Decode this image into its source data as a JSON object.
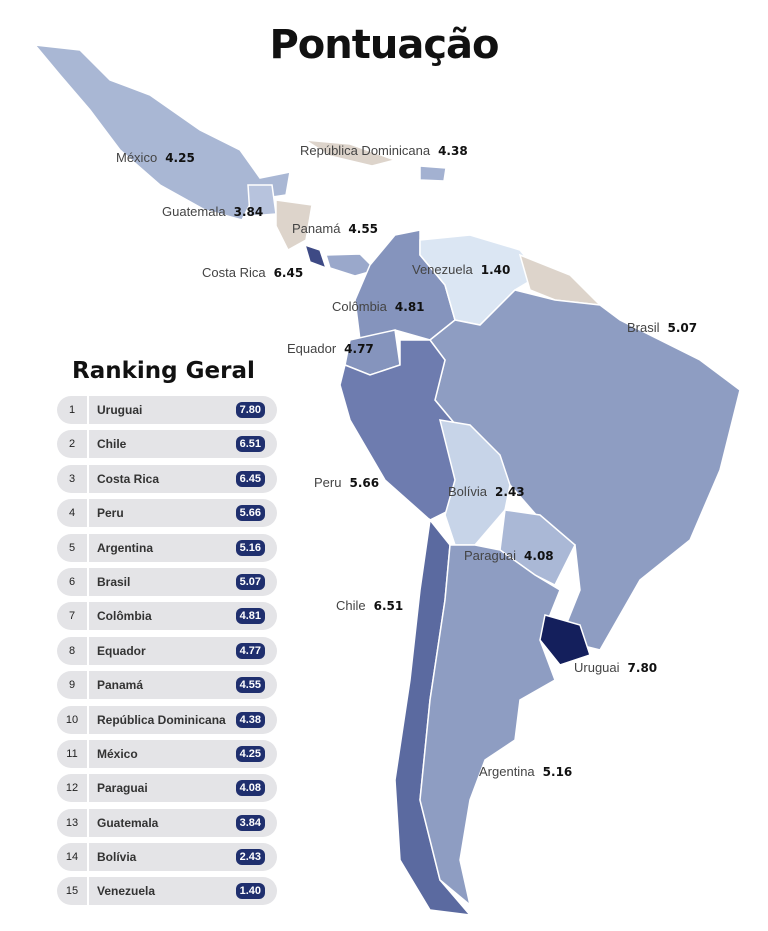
{
  "title": "Pontuação",
  "colors": {
    "unrated": "#ddd4cb",
    "darkest": "#141f5c",
    "lightest": "#dbe6f3",
    "badge": "#1f2f6e"
  },
  "map_labels": [
    {
      "name": "México",
      "score": "4.25"
    },
    {
      "name": "República Dominicana",
      "score": "4.38"
    },
    {
      "name": "Guatemala",
      "score": "3.84"
    },
    {
      "name": "Panamá",
      "score": "4.55"
    },
    {
      "name": "Costa Rica",
      "score": "6.45"
    },
    {
      "name": "Venezuela",
      "score": "1.40"
    },
    {
      "name": "Colômbia",
      "score": "4.81"
    },
    {
      "name": "Brasil",
      "score": "5.07"
    },
    {
      "name": "Equador",
      "score": "4.77"
    },
    {
      "name": "Peru",
      "score": "5.66"
    },
    {
      "name": "Bolívia",
      "score": "2.43"
    },
    {
      "name": "Paraguai",
      "score": "4.08"
    },
    {
      "name": "Chile",
      "score": "6.51"
    },
    {
      "name": "Uruguai",
      "score": "7.80"
    },
    {
      "name": "Argentina",
      "score": "5.16"
    }
  ],
  "ranking": {
    "title": "Ranking Geral",
    "rows": [
      {
        "rank": "1",
        "name": "Uruguai",
        "score": "7.80"
      },
      {
        "rank": "2",
        "name": "Chile",
        "score": "6.51"
      },
      {
        "rank": "3",
        "name": "Costa Rica",
        "score": "6.45"
      },
      {
        "rank": "4",
        "name": "Peru",
        "score": "5.66"
      },
      {
        "rank": "5",
        "name": "Argentina",
        "score": "5.16"
      },
      {
        "rank": "6",
        "name": "Brasil",
        "score": "5.07"
      },
      {
        "rank": "7",
        "name": "Colômbia",
        "score": "4.81"
      },
      {
        "rank": "8",
        "name": "Equador",
        "score": "4.77"
      },
      {
        "rank": "9",
        "name": "Panamá",
        "score": "4.55"
      },
      {
        "rank": "10",
        "name": "República Dominicana",
        "score": "4.38"
      },
      {
        "rank": "11",
        "name": "México",
        "score": "4.25"
      },
      {
        "rank": "12",
        "name": "Paraguai",
        "score": "4.08"
      },
      {
        "rank": "13",
        "name": "Guatemala",
        "score": "3.84"
      },
      {
        "rank": "14",
        "name": "Bolívia",
        "score": "2.43"
      },
      {
        "rank": "15",
        "name": "Venezuela",
        "score": "1.40"
      }
    ]
  }
}
